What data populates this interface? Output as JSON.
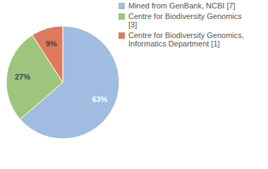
{
  "chart_data": {
    "type": "pie",
    "categories": [
      "Mined from GenBank, NCBI [7]",
      "Centre for Biodiversity Genomics [3]",
      "Centre for Biodiversity Genomics, Informatics Department [1]"
    ],
    "values": [
      63,
      27,
      9
    ],
    "value_labels": [
      "63%",
      "27%",
      "9%"
    ],
    "colors": [
      "#a0bce0",
      "#9dc57c",
      "#e07a5d"
    ],
    "data_labels": true,
    "legend": "upper right"
  }
}
